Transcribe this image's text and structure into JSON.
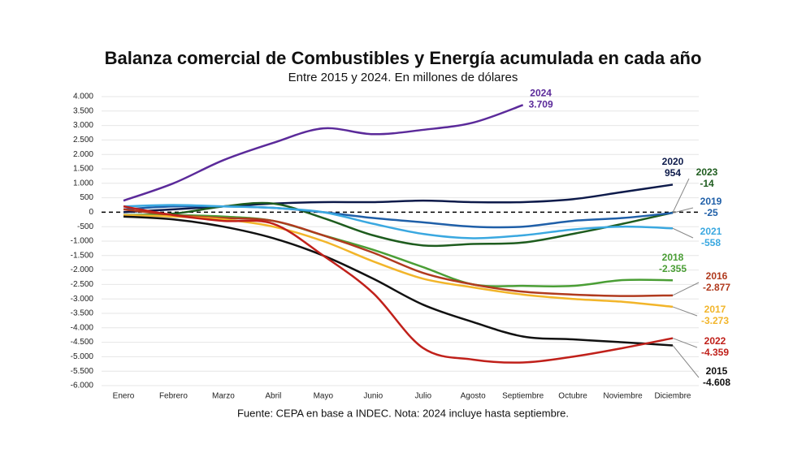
{
  "chart_data": {
    "type": "line",
    "title": "Balanza comercial de Combustibles y Energía acumulada en cada año",
    "subtitle": "Entre 2015 y 2024. En millones de dólares",
    "source": "Fuente: CEPA en base a INDEC. Nota: 2024 incluye hasta septiembre.",
    "categories": [
      "Enero",
      "Febrero",
      "Marzo",
      "Abril",
      "Mayo",
      "Junio",
      "Julio",
      "Agosto",
      "Septiembre",
      "Octubre",
      "Noviembre",
      "Diciembre"
    ],
    "ylim": [
      -6000,
      4000
    ],
    "yticks": [
      {
        "value": 4000,
        "label": "4.000"
      },
      {
        "value": 3500,
        "label": "3.500"
      },
      {
        "value": 3000,
        "label": "3.000"
      },
      {
        "value": 2500,
        "label": "2.500"
      },
      {
        "value": 2000,
        "label": "2.000"
      },
      {
        "value": 1500,
        "label": "1.500"
      },
      {
        "value": 1000,
        "label": "1.000"
      },
      {
        "value": 500,
        "label": "500"
      },
      {
        "value": 0,
        "label": "0"
      },
      {
        "value": -500,
        "label": "-500"
      },
      {
        "value": -1000,
        "label": "-1.000"
      },
      {
        "value": -1500,
        "label": "-1.500"
      },
      {
        "value": -2000,
        "label": "-2.000"
      },
      {
        "value": -2500,
        "label": "-2.500"
      },
      {
        "value": -3000,
        "label": "-3.000"
      },
      {
        "value": -3500,
        "label": "-3.500"
      },
      {
        "value": -4000,
        "label": "-4.000"
      },
      {
        "value": -4500,
        "label": "-4.500"
      },
      {
        "value": -5000,
        "label": "-5.000"
      },
      {
        "value": -5500,
        "label": "-5.500"
      },
      {
        "value": -6000,
        "label": "-6.000"
      }
    ],
    "grid": true,
    "series": [
      {
        "name": "2024",
        "color": "#5b2a9a",
        "values": [
          400,
          1000,
          1800,
          2400,
          2900,
          2700,
          2850,
          3100,
          3709,
          null,
          null,
          null
        ],
        "value_labels": [
          null,
          null,
          null,
          null,
          null,
          null,
          null,
          null,
          "3.709",
          null,
          null,
          null
        ]
      },
      {
        "name": "2020",
        "color": "#0d1a4a",
        "values": [
          0,
          100,
          200,
          300,
          350,
          350,
          400,
          350,
          350,
          450,
          700,
          954
        ],
        "value_labels": [
          null,
          null,
          null,
          null,
          null,
          null,
          null,
          null,
          null,
          null,
          null,
          "954"
        ]
      },
      {
        "name": "2023",
        "color": "#1e5c1e",
        "values": [
          -100,
          -50,
          200,
          300,
          -200,
          -800,
          -1150,
          -1100,
          -1050,
          -750,
          -400,
          -14
        ],
        "value_labels": [
          null,
          null,
          null,
          null,
          null,
          null,
          null,
          null,
          null,
          null,
          null,
          "-14"
        ]
      },
      {
        "name": "2019",
        "color": "#1f5fa8",
        "values": [
          100,
          200,
          200,
          150,
          0,
          -200,
          -350,
          -500,
          -500,
          -300,
          -200,
          -25
        ],
        "value_labels": [
          null,
          null,
          null,
          null,
          null,
          null,
          null,
          null,
          null,
          null,
          null,
          "-25"
        ]
      },
      {
        "name": "2021",
        "color": "#3aa8e0",
        "values": [
          200,
          250,
          200,
          150,
          0,
          -400,
          -750,
          -900,
          -800,
          -600,
          -500,
          -558
        ],
        "value_labels": [
          null,
          null,
          null,
          null,
          null,
          null,
          null,
          null,
          null,
          null,
          null,
          "-558"
        ]
      },
      {
        "name": "2018",
        "color": "#4a9e35",
        "values": [
          -100,
          -100,
          -150,
          -300,
          -800,
          -1300,
          -1900,
          -2500,
          -2550,
          -2550,
          -2350,
          -2355
        ],
        "value_labels": [
          null,
          null,
          null,
          null,
          null,
          null,
          null,
          null,
          null,
          null,
          null,
          "-2.355"
        ]
      },
      {
        "name": "2016",
        "color": "#b03a1e",
        "values": [
          100,
          -100,
          -200,
          -300,
          -800,
          -1400,
          -2100,
          -2500,
          -2750,
          -2850,
          -2900,
          -2877
        ],
        "value_labels": [
          null,
          null,
          null,
          null,
          null,
          null,
          null,
          null,
          null,
          null,
          null,
          "-2.877"
        ]
      },
      {
        "name": "2017",
        "color": "#f2b52a",
        "values": [
          -100,
          -150,
          -250,
          -500,
          -1000,
          -1700,
          -2300,
          -2600,
          -2850,
          -3000,
          -3100,
          -3273
        ],
        "value_labels": [
          null,
          null,
          null,
          null,
          null,
          null,
          null,
          null,
          null,
          null,
          null,
          "-3.273"
        ]
      },
      {
        "name": "2015",
        "color": "#111111",
        "values": [
          -150,
          -250,
          -500,
          -900,
          -1500,
          -2300,
          -3200,
          -3800,
          -4300,
          -4400,
          -4500,
          -4608
        ],
        "value_labels": [
          null,
          null,
          null,
          null,
          null,
          null,
          null,
          null,
          null,
          null,
          null,
          "-4.608"
        ]
      },
      {
        "name": "2022",
        "color": "#c0201a",
        "values": [
          200,
          -100,
          -300,
          -400,
          -1500,
          -2800,
          -4700,
          -5100,
          -5200,
          -5000,
          -4700,
          -4359
        ],
        "value_labels": [
          null,
          null,
          null,
          null,
          null,
          null,
          null,
          null,
          null,
          null,
          null,
          "-4.359"
        ]
      }
    ]
  }
}
